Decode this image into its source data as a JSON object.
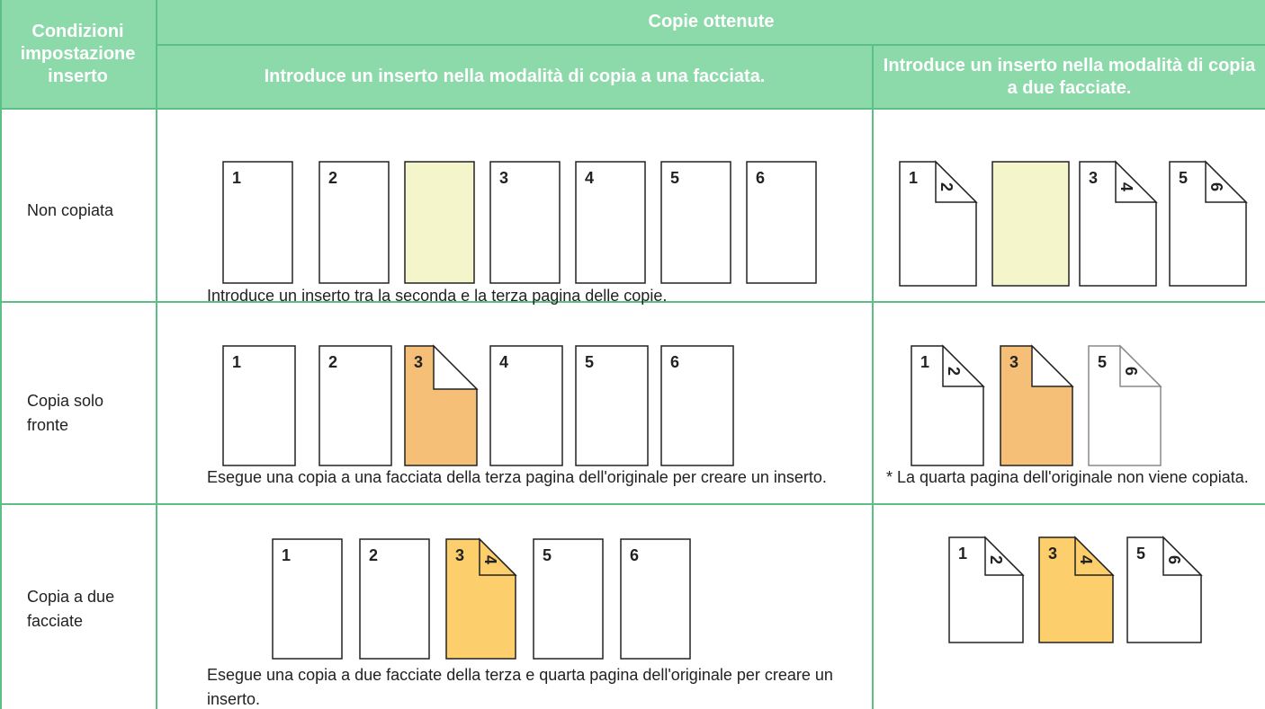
{
  "header": {
    "condition": "Condizioni impostazione inserto",
    "copies": "Copie ottenute",
    "single": "Introduce un inserto nella modalità di copia a una facciata.",
    "double": "Introduce un inserto nella modalità di copia a due facciate."
  },
  "rows": [
    {
      "condition": "Non copiata",
      "single": {
        "pages": [
          {
            "front": "1"
          },
          {
            "front": "2"
          },
          {
            "fill": "#f5f5cc"
          },
          {
            "front": "3"
          },
          {
            "front": "4"
          },
          {
            "front": "5"
          },
          {
            "front": "6"
          }
        ],
        "note": "Introduce un inserto tra la seconda e la terza pagina delle copie."
      },
      "double": {
        "pages": [
          {
            "front": "1",
            "back": "2"
          },
          {
            "fill": "#f5f5cc"
          },
          {
            "front": "3",
            "back": "4"
          },
          {
            "front": "5",
            "back": "6"
          }
        ]
      }
    },
    {
      "condition": "Copia solo fronte",
      "single": {
        "pages": [
          {
            "front": "1"
          },
          {
            "front": "2"
          },
          {
            "front": "3",
            "fill": "#f5bf78",
            "fold": true
          },
          {
            "front": "4"
          },
          {
            "front": "5"
          },
          {
            "front": "6"
          }
        ],
        "note": "Esegue una copia a una facciata della terza pagina dell'originale per creare un inserto."
      },
      "double": {
        "pages": [
          {
            "front": "1",
            "back": "2"
          },
          {
            "front": "3",
            "fill": "#f5bf78",
            "fold": true
          },
          {
            "front": "5",
            "back": "6",
            "stroke": "#888888"
          }
        ],
        "note": "* La quarta pagina dell'originale non viene copiata."
      }
    },
    {
      "condition": "Copia a due facciate",
      "single": {
        "pages": [
          {
            "front": "1"
          },
          {
            "front": "2"
          },
          {
            "front": "3",
            "back": "4",
            "fill": "#fccf6c"
          },
          {
            "front": "5"
          },
          {
            "front": "6"
          }
        ],
        "note": "Esegue una copia a due facciate della terza e quarta pagina dell'originale per creare un inserto."
      },
      "double": {
        "pages": [
          {
            "front": "1",
            "back": "2"
          },
          {
            "front": "3",
            "back": "4",
            "fill": "#fccf6c"
          },
          {
            "front": "5",
            "back": "6"
          }
        ]
      }
    }
  ]
}
